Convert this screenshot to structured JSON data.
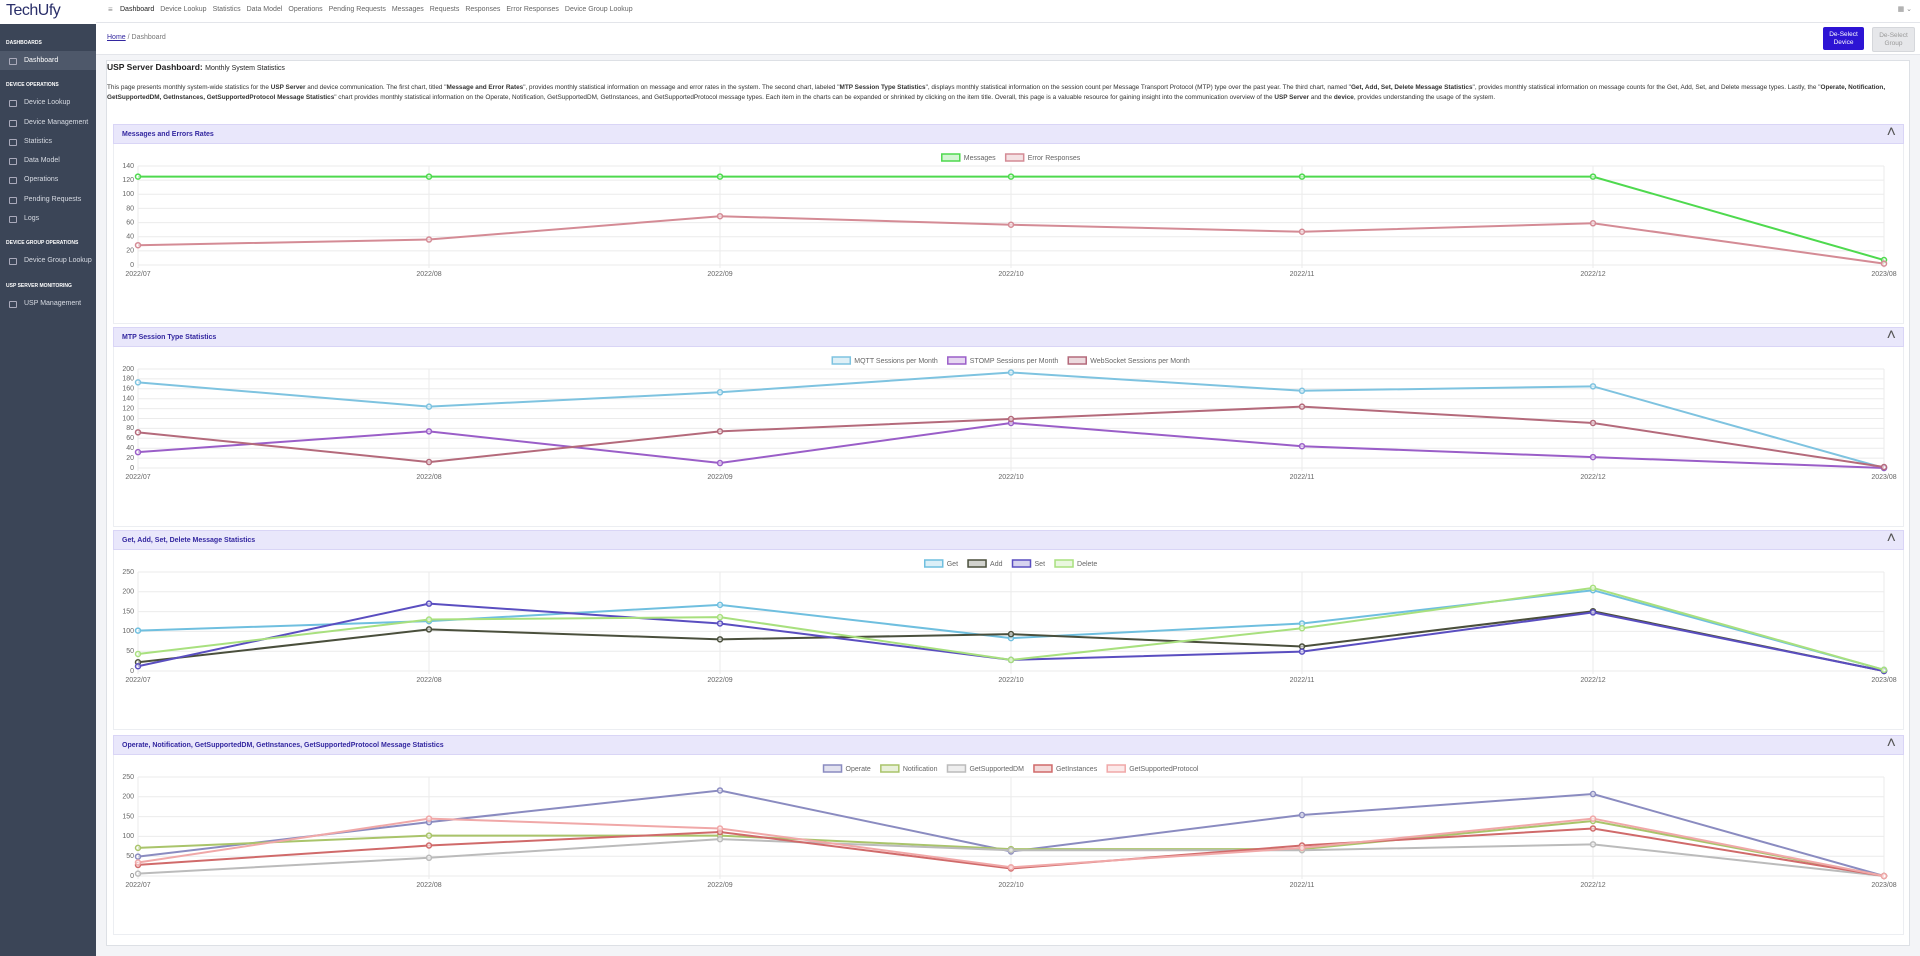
{
  "brand": "TechUfy",
  "top_nav": [
    "Dashboard",
    "Device Lookup",
    "Statistics",
    "Data Model",
    "Operations",
    "Pending Requests",
    "Messages",
    "Requests",
    "Responses",
    "Error Responses",
    "Device Group Lookup"
  ],
  "sidebar": [
    {
      "heading": "DASHBOARDS",
      "items": [
        "Dashboard"
      ]
    },
    {
      "heading": "DEVICE OPERATIONS",
      "items": [
        "Device Lookup",
        "Device Management",
        "Statistics",
        "Data Model",
        "Operations",
        "Pending Requests",
        "Logs"
      ]
    },
    {
      "heading": "DEVICE GROUP OPERATIONS",
      "items": [
        "Device Group Lookup"
      ]
    },
    {
      "heading": "USP SERVER MONITORING",
      "items": [
        "USP Management"
      ]
    }
  ],
  "breadcrumb": [
    "Home",
    "Dashboard"
  ],
  "buttons": [
    "De-Select Device",
    "De-Select Group"
  ],
  "page_title": "USP Server Dashboard:",
  "page_subtitle": "Monthly System Statistics",
  "description": [
    "This page presents monthly system-wide statistics for the ",
    "USP Server",
    " and device communication. The first chart, titled \"",
    "Message and Error Rates",
    "\", provides monthly statistical information on message and error rates in the system. The second chart, labeled \"",
    "MTP Session Type Statistics",
    "\", displays monthly statistical information on the session count per Message Transport Protocol (MTP) type over the past year. The third chart, named \"",
    "Get, Add, Set, Delete Message Statistics",
    "\", provides monthly statistical information on message counts for the Get, Add, Set, and Delete message types. Lastly, the \"",
    "Operate, Notification, GetSupportedDM, GetInstances, GetSupportedProtocol Message Statistics",
    "\" chart provides monthly statistical information on the Operate, Notification, GetSupportedDM, GetInstances, and GetSupportedProtocol message types. Each item in the charts can be expanded or shrinked by clicking on the item title. Overall, this page is a valuable resource for gaining insight into the communication overview of the ",
    "USP Server",
    " and the ",
    "device",
    ", provides understanding the usage of the system."
  ],
  "chart_data": [
    {
      "type": "line",
      "title": "Messages and Errors Rates",
      "categories": [
        "2022/07",
        "2022/08",
        "2022/09",
        "2022/10",
        "2022/11",
        "2022/12",
        "2023/08"
      ],
      "ylim": [
        0,
        140
      ],
      "yticks": [
        0,
        20,
        40,
        60,
        80,
        100,
        120,
        140
      ],
      "grid": true,
      "series": [
        {
          "name": "Messages",
          "color": "#4ed94e",
          "values": [
            125,
            125,
            125,
            125,
            125,
            125,
            7
          ]
        },
        {
          "name": "Error Responses",
          "color": "#d48b95",
          "values": [
            28,
            36,
            69,
            57,
            47,
            59,
            2
          ]
        }
      ]
    },
    {
      "type": "line",
      "title": "MTP Session Type Statistics",
      "categories": [
        "2022/07",
        "2022/08",
        "2022/09",
        "2022/10",
        "2022/11",
        "2022/12",
        "2023/08"
      ],
      "ylim": [
        0,
        200
      ],
      "yticks": [
        0,
        20,
        40,
        60,
        80,
        100,
        120,
        140,
        160,
        180,
        200
      ],
      "grid": true,
      "series": [
        {
          "name": "MQTT Sessions per Month",
          "color": "#7ec3e0",
          "values": [
            173,
            124,
            153,
            193,
            156,
            165,
            0
          ]
        },
        {
          "name": "STOMP Sessions per Month",
          "color": "#9a5ec8",
          "values": [
            32,
            74,
            10,
            91,
            44,
            22,
            0
          ]
        },
        {
          "name": "WebSocket Sessions per Month",
          "color": "#b46a7b",
          "values": [
            72,
            12,
            74,
            99,
            124,
            91,
            2
          ]
        }
      ]
    },
    {
      "type": "line",
      "title": "Get, Add, Set, Delete Message Statistics",
      "categories": [
        "2022/07",
        "2022/08",
        "2022/09",
        "2022/10",
        "2022/11",
        "2022/12",
        "2023/08"
      ],
      "ylim": [
        0,
        250
      ],
      "yticks": [
        0,
        50,
        100,
        150,
        200,
        250
      ],
      "grid": true,
      "series": [
        {
          "name": "Get",
          "color": "#6fbfdf",
          "values": [
            102,
            126,
            167,
            83,
            120,
            204,
            3
          ]
        },
        {
          "name": "Add",
          "color": "#4a4f3c",
          "values": [
            22,
            105,
            80,
            93,
            62,
            151,
            0
          ]
        },
        {
          "name": "Set",
          "color": "#5a4ec0",
          "values": [
            12,
            170,
            120,
            28,
            49,
            148,
            0
          ]
        },
        {
          "name": "Delete",
          "color": "#a8e07e",
          "values": [
            43,
            130,
            136,
            28,
            108,
            210,
            3
          ]
        }
      ]
    },
    {
      "type": "line",
      "title": "Operate, Notification, GetSupportedDM, GetInstances, GetSupportedProtocol Message Statistics",
      "categories": [
        "2022/07",
        "2022/08",
        "2022/09",
        "2022/10",
        "2022/11",
        "2022/12",
        "2023/08"
      ],
      "ylim": [
        0,
        250
      ],
      "yticks": [
        0,
        50,
        100,
        150,
        200,
        250
      ],
      "grid": true,
      "series": [
        {
          "name": "Operate",
          "color": "#8a8bc0",
          "values": [
            49,
            136,
            216,
            62,
            154,
            207,
            0
          ]
        },
        {
          "name": "Notification",
          "color": "#a9c46a",
          "values": [
            71,
            102,
            102,
            68,
            68,
            139,
            0
          ]
        },
        {
          "name": "GetSupportedDM",
          "color": "#bbbbbb",
          "values": [
            6,
            46,
            93,
            65,
            65,
            80,
            0
          ]
        },
        {
          "name": "GetInstances",
          "color": "#d06a6a",
          "values": [
            28,
            77,
            111,
            19,
            77,
            120,
            0
          ]
        },
        {
          "name": "GetSupportedProtocol",
          "color": "#f0a8a8",
          "values": [
            34,
            145,
            120,
            22,
            71,
            145,
            0
          ]
        }
      ]
    }
  ]
}
